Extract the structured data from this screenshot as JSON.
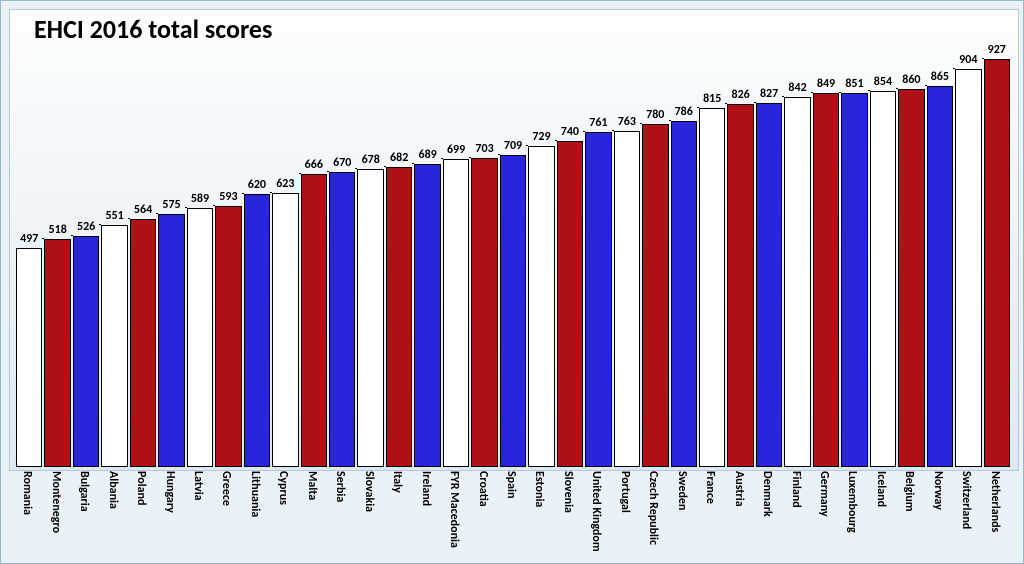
{
  "chart": {
    "type": "bar",
    "title": "EHCI 2016 total scores",
    "title_fontsize": 26,
    "title_color": "#000000",
    "title_fontweight": 700,
    "background_gradient_top": "#fdfefe",
    "background_gradient_bottom": "#dde9f2",
    "outer_background": "#eaf2f8",
    "border_color": "#b8c8d4",
    "value_label_fontsize": 12,
    "value_label_fontweight": 700,
    "axis_label_fontsize": 12,
    "axis_label_fontweight": 700,
    "axis_label_rotation": 90,
    "bar_border_color": "#000000",
    "connector_line_color": "#000000",
    "ymax": 1000,
    "ymin": 0,
    "bar_gap_ratio": 0.0,
    "colors": {
      "white": "#ffffff",
      "red": "#b01116",
      "blue": "#2a25dd"
    },
    "data": [
      {
        "label": "Romania",
        "value": 497,
        "color": "white"
      },
      {
        "label": "Montenegro",
        "value": 518,
        "color": "red"
      },
      {
        "label": "Bulgaria",
        "value": 526,
        "color": "blue"
      },
      {
        "label": "Albania",
        "value": 551,
        "color": "white"
      },
      {
        "label": "Poland",
        "value": 564,
        "color": "red"
      },
      {
        "label": "Hungary",
        "value": 575,
        "color": "blue"
      },
      {
        "label": "Latvia",
        "value": 589,
        "color": "white"
      },
      {
        "label": "Greece",
        "value": 593,
        "color": "red"
      },
      {
        "label": "Lithuania",
        "value": 620,
        "color": "blue"
      },
      {
        "label": "Cyprus",
        "value": 623,
        "color": "white"
      },
      {
        "label": "Malta",
        "value": 666,
        "color": "red"
      },
      {
        "label": "Serbia",
        "value": 670,
        "color": "blue"
      },
      {
        "label": "Slovakia",
        "value": 678,
        "color": "white"
      },
      {
        "label": "Italy",
        "value": 682,
        "color": "red"
      },
      {
        "label": "Ireland",
        "value": 689,
        "color": "blue"
      },
      {
        "label": "FYR Macedonia",
        "value": 699,
        "color": "white"
      },
      {
        "label": "Croatia",
        "value": 703,
        "color": "red"
      },
      {
        "label": "Spain",
        "value": 709,
        "color": "blue"
      },
      {
        "label": "Estonia",
        "value": 729,
        "color": "white"
      },
      {
        "label": "Slovenia",
        "value": 740,
        "color": "red"
      },
      {
        "label": "United Kingdom",
        "value": 761,
        "color": "blue"
      },
      {
        "label": "Portugal",
        "value": 763,
        "color": "white"
      },
      {
        "label": "Czech Republic",
        "value": 780,
        "color": "red"
      },
      {
        "label": "Sweden",
        "value": 786,
        "color": "blue"
      },
      {
        "label": "France",
        "value": 815,
        "color": "white"
      },
      {
        "label": "Austria",
        "value": 826,
        "color": "red"
      },
      {
        "label": "Denmark",
        "value": 827,
        "color": "blue"
      },
      {
        "label": "Finland",
        "value": 842,
        "color": "white"
      },
      {
        "label": "Germany",
        "value": 849,
        "color": "red"
      },
      {
        "label": "Luxembourg",
        "value": 851,
        "color": "blue"
      },
      {
        "label": "Iceland",
        "value": 854,
        "color": "white"
      },
      {
        "label": "Belgium",
        "value": 860,
        "color": "red"
      },
      {
        "label": "Norway",
        "value": 865,
        "color": "blue"
      },
      {
        "label": "Switzerland",
        "value": 904,
        "color": "white"
      },
      {
        "label": "Netherlands",
        "value": 927,
        "color": "red"
      }
    ]
  }
}
